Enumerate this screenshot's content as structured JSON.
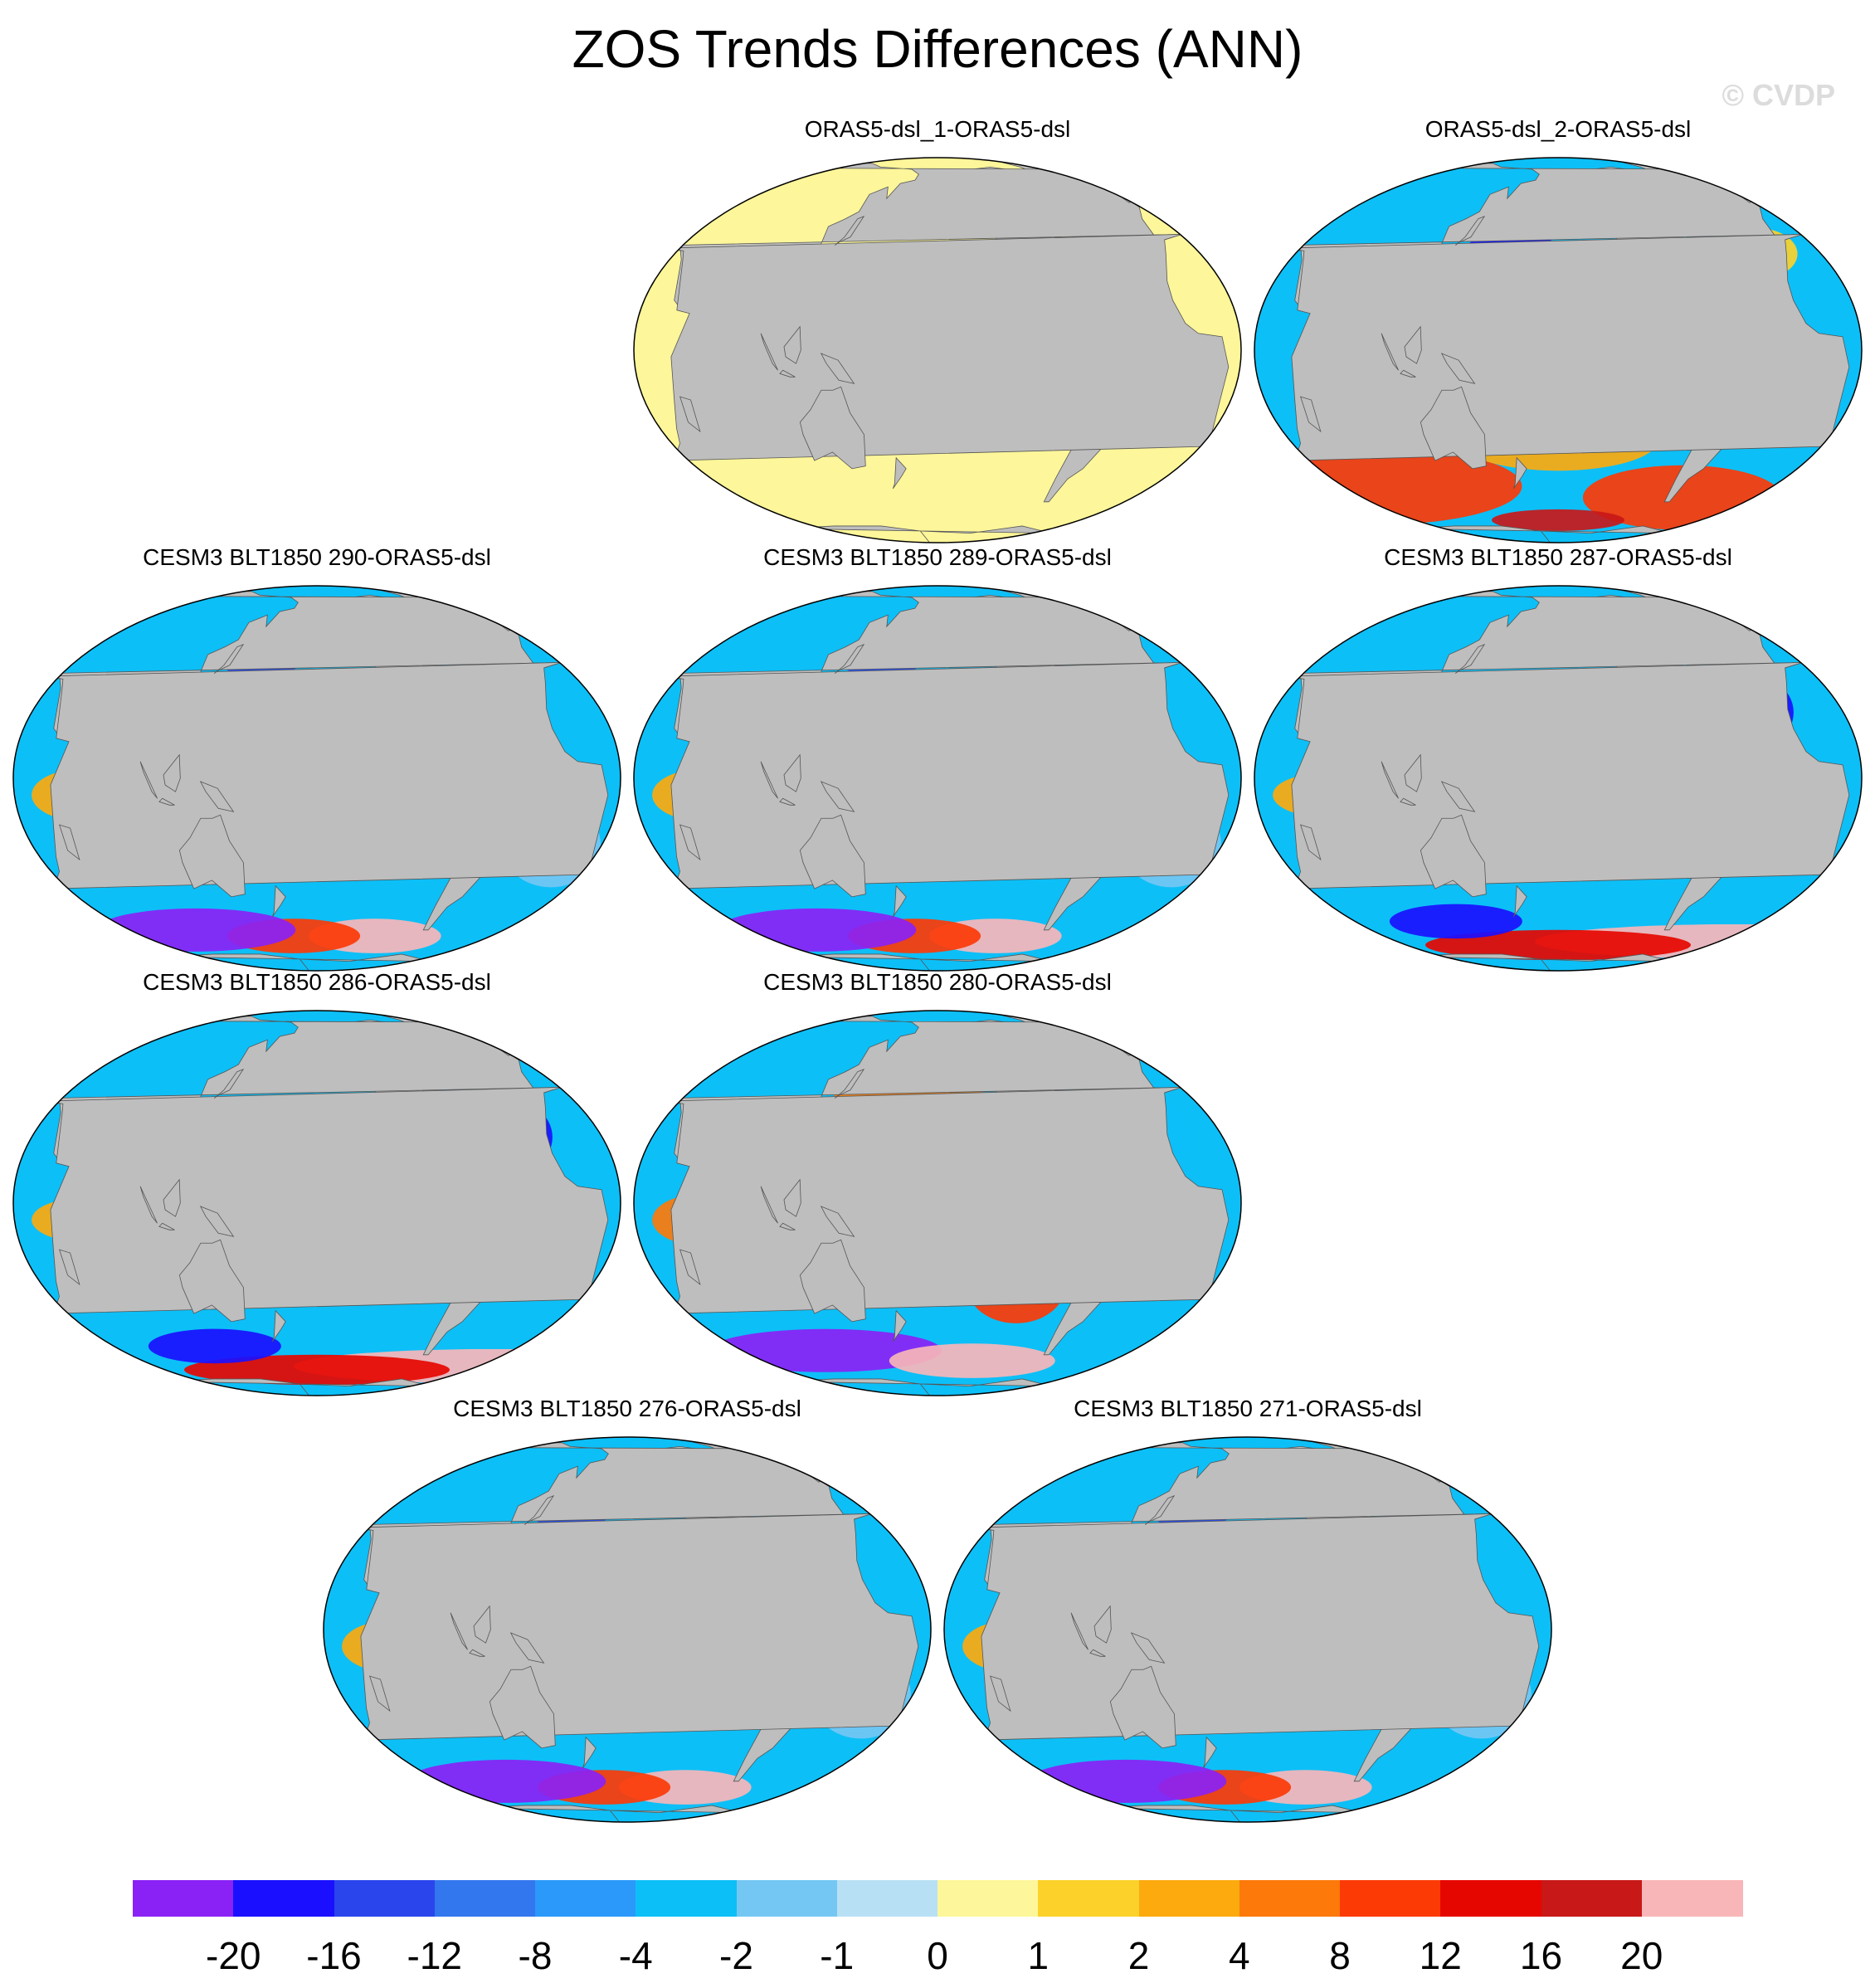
{
  "title": "ZOS Trends Differences (ANN)",
  "watermark": "© CVDP",
  "panels": [
    {
      "title": "ORAS5-dsl_1-ORAS5-dsl",
      "pattern": "zero"
    },
    {
      "title": "ORAS5-dsl_2-ORAS5-dsl",
      "pattern": "mixed"
    },
    {
      "title": "CESM3 BLT1850 290-ORAS5-dsl",
      "pattern": "warm-pacific"
    },
    {
      "title": "CESM3 BLT1850 289-ORAS5-dsl",
      "pattern": "warm-pacific"
    },
    {
      "title": "CESM3 BLT1850 287-ORAS5-dsl",
      "pattern": "cool"
    },
    {
      "title": "CESM3 BLT1850 286-ORAS5-dsl",
      "pattern": "cool"
    },
    {
      "title": "CESM3 BLT1850 280-ORAS5-dsl",
      "pattern": "hot-pacific"
    },
    {
      "title": "CESM3 BLT1850 276-ORAS5-dsl",
      "pattern": "warm-pacific"
    },
    {
      "title": "CESM3 BLT1850 271-ORAS5-dsl",
      "pattern": "warm-pacific"
    }
  ],
  "colorbar": {
    "colors": [
      "#8a22f5",
      "#1a10ff",
      "#2a45ec",
      "#3377ee",
      "#2a99fa",
      "#0dbff7",
      "#74c7f3",
      "#b8e0f5",
      "#fdf69a",
      "#fcd22a",
      "#fcaa0e",
      "#fc790a",
      "#fc3a06",
      "#e60600",
      "#c81818",
      "#f8b6b8"
    ],
    "labels": [
      "-20",
      "-16",
      "-12",
      "-8",
      "-4",
      "-2",
      "-1",
      "0",
      "1",
      "2",
      "4",
      "8",
      "12",
      "16",
      "20"
    ]
  }
}
